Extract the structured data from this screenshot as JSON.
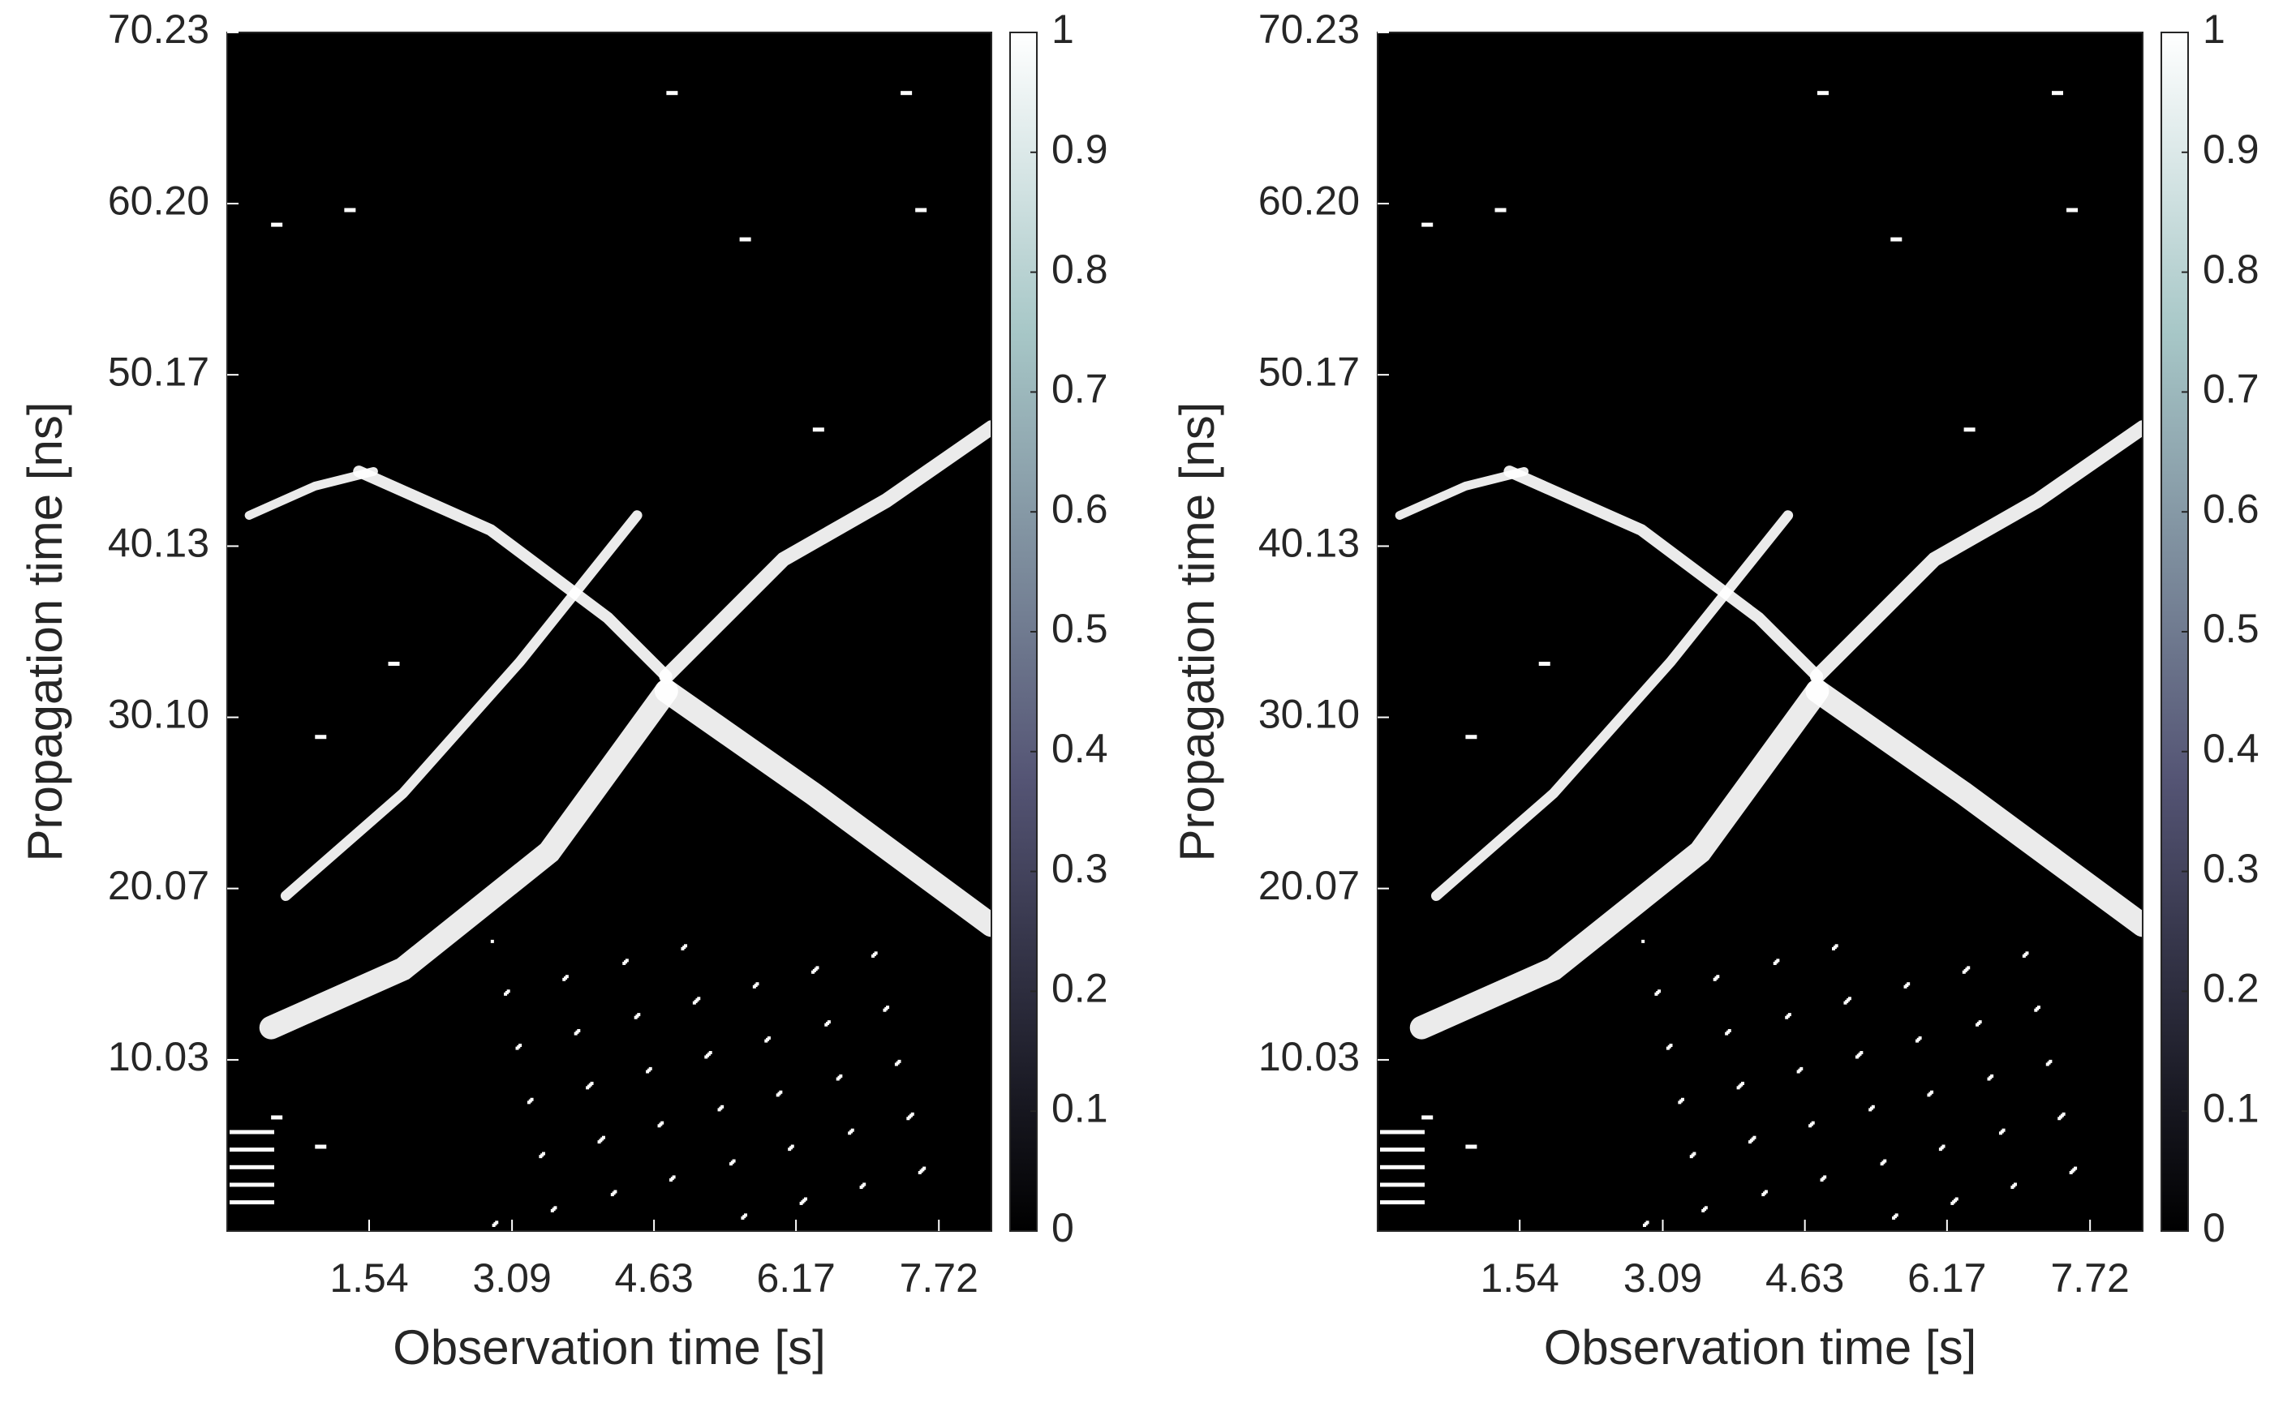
{
  "chart_data": [
    {
      "type": "heatmap",
      "x_label": "Observation time [s]",
      "y_label": "Propagation time [ns]",
      "xlim": [
        0,
        8.29
      ],
      "xticks": [
        1.54,
        3.09,
        4.63,
        6.17,
        7.72
      ],
      "ylim": [
        0,
        70.23
      ],
      "yticks": [
        10.03,
        20.07,
        {
          "value": 30.1,
          "label": "30.10"
        },
        40.13,
        50.17,
        {
          "value": 60.2,
          "label": "60.20"
        },
        70.23
      ],
      "colormap": "bone",
      "colorbar_lim": [
        0,
        1
      ],
      "colorbar_ticks": [
        0,
        0.1,
        0.2,
        0.3,
        0.4,
        0.5,
        0.6,
        0.7,
        0.8,
        0.9,
        1
      ]
    },
    {
      "type": "heatmap",
      "x_label": "Observation time [s]",
      "y_label": "Propagation time [ns]",
      "xlim": [
        0,
        8.29
      ],
      "xticks": [
        1.54,
        3.09,
        4.63,
        6.17,
        7.72
      ],
      "ylim": [
        0,
        70.23
      ],
      "yticks": [
        10.03,
        20.07,
        {
          "value": 30.1,
          "label": "30.10"
        },
        40.13,
        50.17,
        {
          "value": 60.2,
          "label": "60.20"
        },
        70.23
      ],
      "colormap": "bone",
      "colorbar_lim": [
        0,
        1
      ],
      "colorbar_ticks": [
        0,
        0.1,
        0.2,
        0.3,
        0.4,
        0.5,
        0.6,
        0.7,
        0.8,
        0.9,
        1
      ]
    }
  ]
}
